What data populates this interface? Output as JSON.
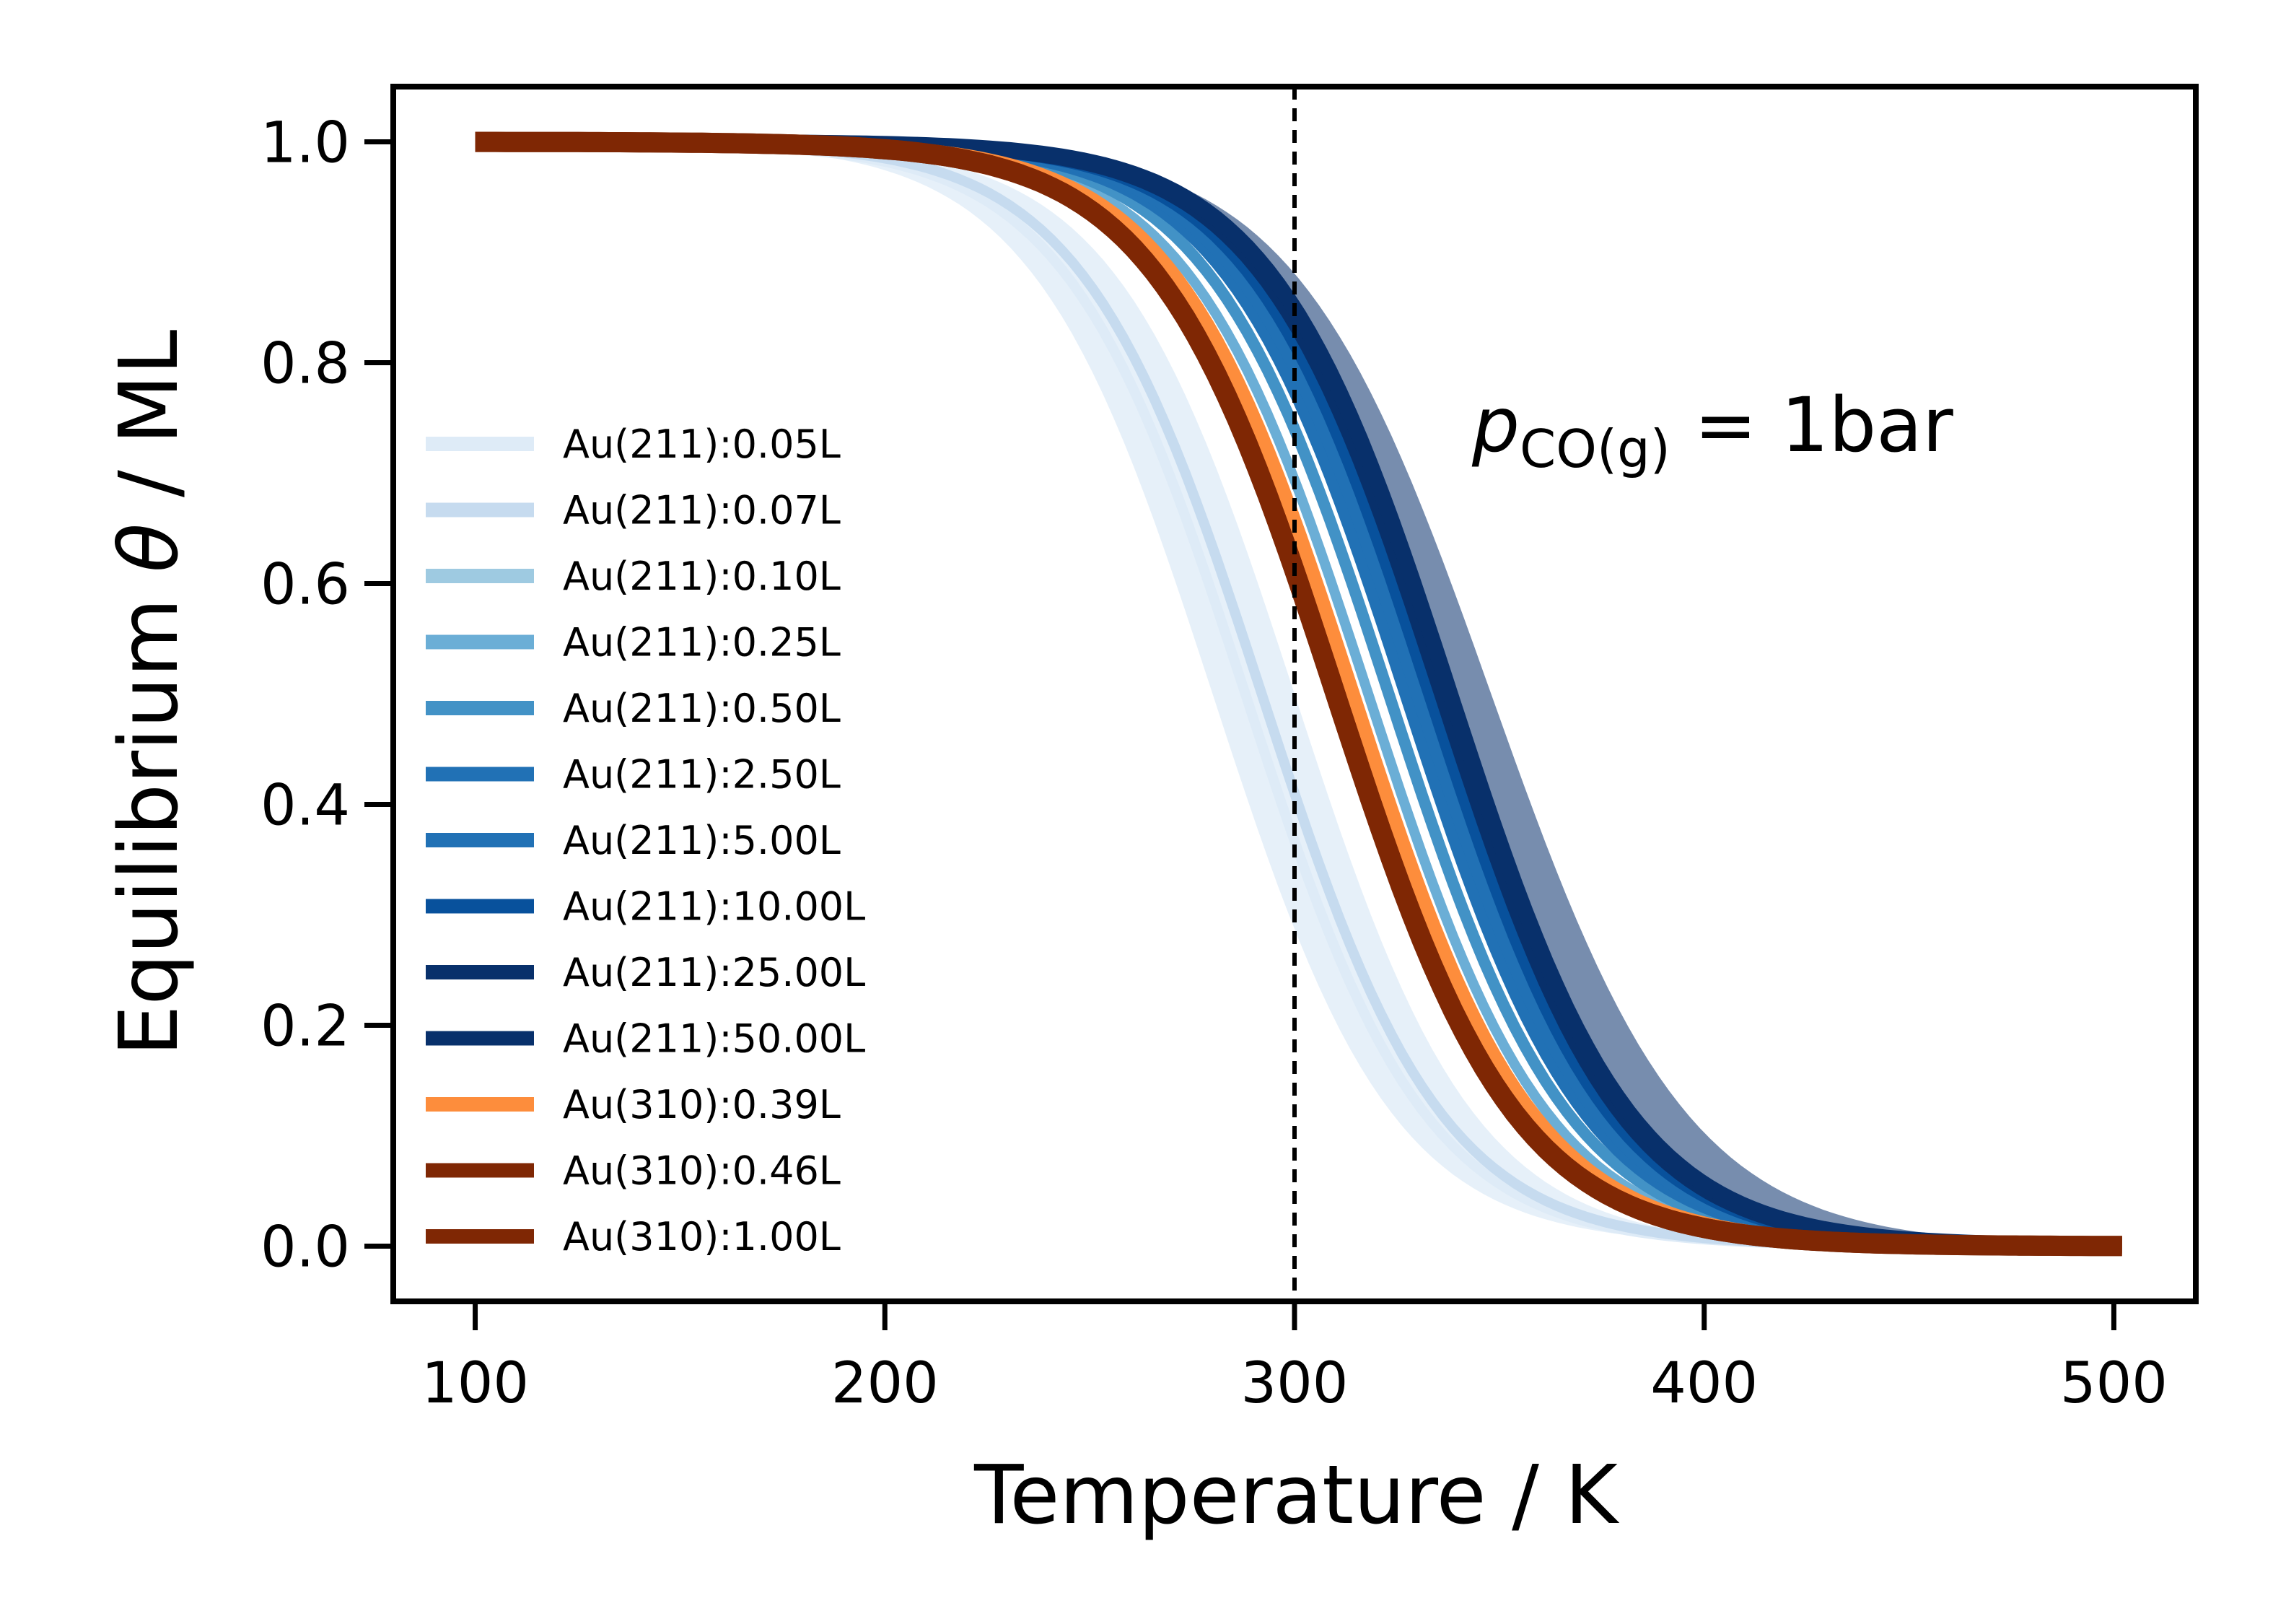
{
  "chart_data": {
    "type": "line",
    "xlabel": "Temperature / K",
    "ylabel_prefix": "Equilibrium ",
    "ylabel_symbol": "θ",
    "ylabel_suffix": " / ML",
    "xlim": [
      80,
      520
    ],
    "ylim": [
      -0.05,
      1.05
    ],
    "xticks": [
      100,
      200,
      300,
      400,
      500
    ],
    "xtick_labels": [
      "100",
      "200",
      "300",
      "400",
      "500"
    ],
    "yticks": [
      0.0,
      0.2,
      0.4,
      0.6,
      0.8,
      1.0
    ],
    "ytick_labels": [
      "0.0",
      "0.2",
      "0.4",
      "0.6",
      "0.8",
      "1.0"
    ],
    "grid": false,
    "legend_position": "left",
    "reference_line": {
      "x": 300,
      "style": "dashed",
      "color": "#000000"
    },
    "annotation": {
      "symbol": "p",
      "subscript": "CO(g)",
      "text": " = 1bar"
    },
    "x_range": [
      100,
      502
    ],
    "series": [
      {
        "name": "Au(211):0.05L",
        "color": "#deebf7",
        "T_half": 288,
        "width": 22,
        "lower_band": 0.0,
        "upper_band": 0.0
      },
      {
        "name": "Au(211):0.07L",
        "color": "#c6dbef",
        "T_half": 292,
        "width": 22,
        "lower_band": 0.0,
        "upper_band": 0.0
      },
      {
        "name": "Au(211):0.10L",
        "color": "#9ecae1",
        "T_half": 312,
        "width": 22,
        "lower_band": 0.0,
        "upper_band": 0.0
      },
      {
        "name": "Au(211):0.25L",
        "color": "#6baed6",
        "T_half": 318,
        "width": 22,
        "lower_band": 0.0,
        "upper_band": 0.0
      },
      {
        "name": "Au(211):0.50L",
        "color": "#4292c6",
        "T_half": 323,
        "width": 22,
        "lower_band": 0.0,
        "upper_band": 0.0
      },
      {
        "name": "Au(211):2.50L",
        "color": "#2171b5",
        "T_half": 327,
        "width": 22,
        "lower_band": 0.0,
        "upper_band": 0.0
      },
      {
        "name": "Au(211):5.00L",
        "color": "#2171b5",
        "T_half": 330,
        "width": 22,
        "lower_band": 0.0,
        "upper_band": 0.0
      },
      {
        "name": "Au(211):10.00L",
        "color": "#08519c",
        "T_half": 333,
        "width": 22,
        "lower_band": 0.0,
        "upper_band": 0.0
      },
      {
        "name": "Au(211):25.00L",
        "color": "#08306b",
        "T_half": 336,
        "width": 22,
        "lower_band": 0.0,
        "upper_band": 0.0
      },
      {
        "name": "Au(211):50.00L",
        "color": "#08306b",
        "T_half": 338,
        "width": 22,
        "lower_band": 0.0,
        "upper_band": 0.0
      },
      {
        "name": "Au(310):0.39L",
        "color": "#fd8d3c",
        "T_half": 314,
        "width": 22,
        "lower_band": 0.0,
        "upper_band": 0.0
      },
      {
        "name": "Au(310):0.46L",
        "color": "#7f2704",
        "T_half": 310,
        "width": 22,
        "lower_band": 0.0,
        "upper_band": 0.0
      },
      {
        "name": "Au(310):1.00L",
        "color": "#7f2704",
        "T_half": 310,
        "width": 22,
        "lower_band": 0.0,
        "upper_band": 0.0
      }
    ]
  }
}
